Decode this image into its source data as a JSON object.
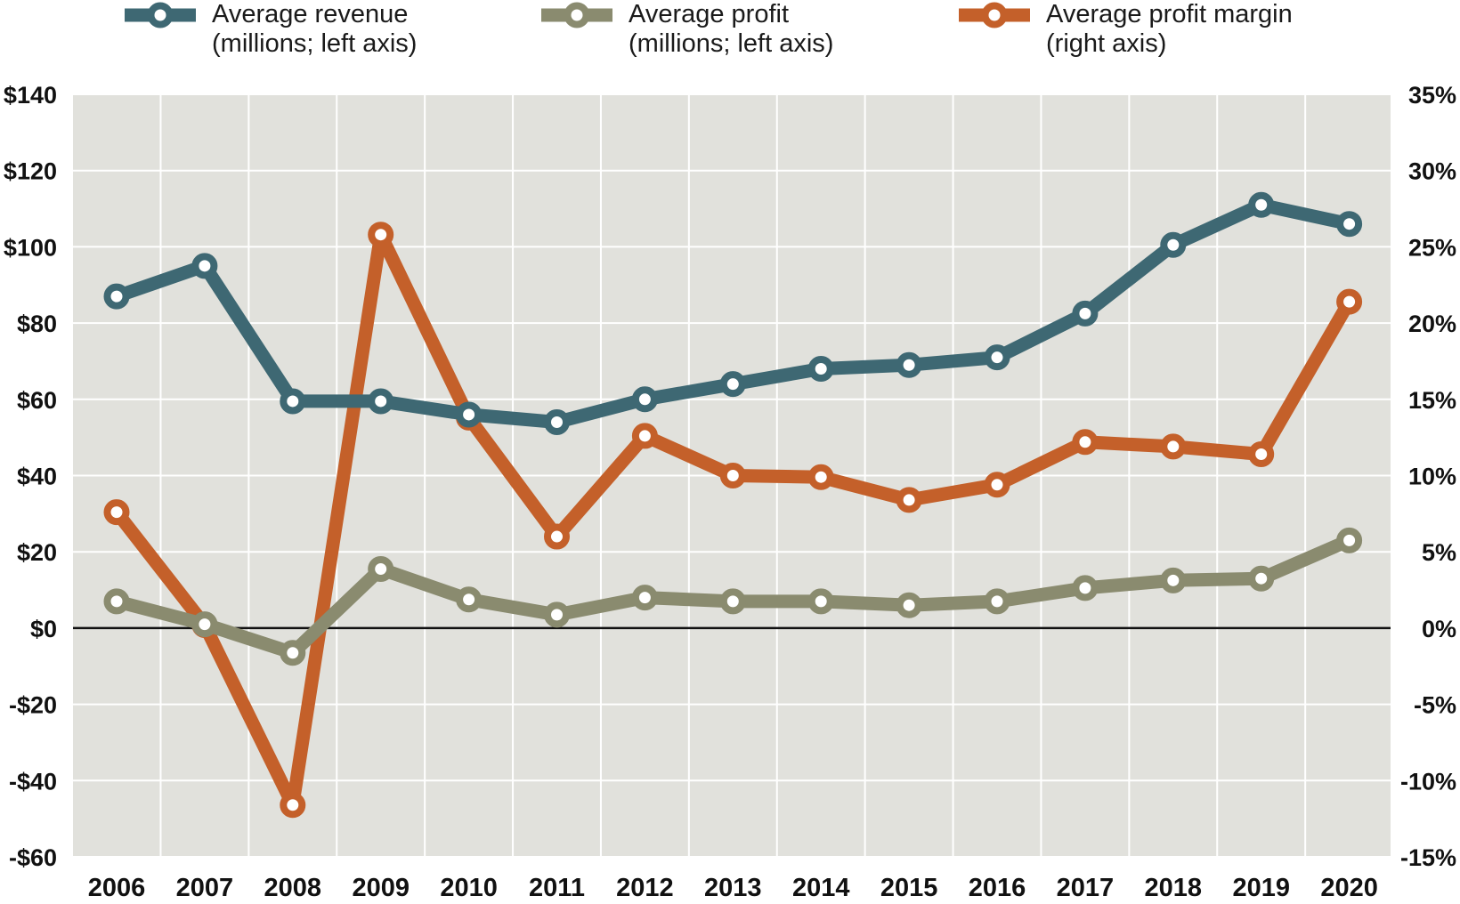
{
  "chart_data": {
    "type": "line",
    "categories": [
      "2006",
      "2007",
      "2008",
      "2009",
      "2010",
      "2011",
      "2012",
      "2013",
      "2014",
      "2015",
      "2016",
      "2017",
      "2018",
      "2019",
      "2020"
    ],
    "left_axis": {
      "range": [
        -60,
        140
      ],
      "ticks": [
        140,
        120,
        100,
        80,
        60,
        40,
        20,
        0,
        -20,
        -40,
        -60
      ],
      "tick_labels": [
        "$140",
        "$120",
        "$100",
        "$80",
        "$60",
        "$40",
        "$20",
        "$0",
        "-$20",
        "-$40",
        "-$60"
      ]
    },
    "right_axis": {
      "range": [
        -15,
        35
      ],
      "ticks": [
        35,
        30,
        25,
        20,
        15,
        10,
        5,
        0,
        -5,
        -10,
        -15
      ],
      "tick_labels": [
        "35%",
        "30%",
        "25%",
        "20%",
        "15%",
        "10%",
        "5%",
        "0%",
        "-5%",
        "-10%",
        "-15%"
      ]
    },
    "series": [
      {
        "id": "revenue",
        "name_line1": "Average revenue",
        "name_line2": "(millions; left axis)",
        "axis": "left",
        "color": "#3e6873",
        "values": [
          87,
          95,
          59.5,
          59.5,
          56,
          54,
          60,
          64,
          68,
          69,
          71,
          82.5,
          100.5,
          111,
          106
        ]
      },
      {
        "id": "profit",
        "name_line1": "Average profit",
        "name_line2": "(millions; left axis)",
        "axis": "left",
        "color": "#8a8b6f",
        "values": [
          7,
          1,
          -6.5,
          15.5,
          7.5,
          3.5,
          8,
          7,
          7,
          6,
          7,
          10.5,
          12.5,
          13,
          23
        ]
      },
      {
        "id": "margin",
        "name_line1": "Average profit margin",
        "name_line2": "(right axis)",
        "axis": "right",
        "color": "#c4602a",
        "values": [
          7.6,
          0.2,
          -11.6,
          25.8,
          13.8,
          6,
          12.6,
          10,
          9.9,
          8.4,
          9.4,
          12.2,
          11.9,
          11.4,
          21.4
        ]
      }
    ],
    "zero_line": true,
    "grid": true,
    "legend_position": "top"
  }
}
